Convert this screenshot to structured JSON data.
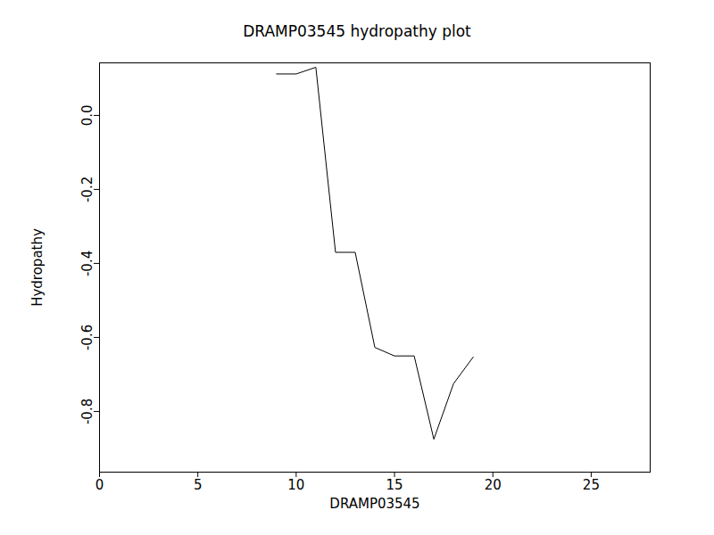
{
  "chart_data": {
    "type": "line",
    "title": "DRAMP03545 hydropathy plot",
    "x_label": "DRAMP03545",
    "y_label": "Hydropathy",
    "x": [
      9,
      10,
      11,
      12,
      13,
      14,
      15,
      16,
      17,
      18,
      19
    ],
    "values": [
      0.112,
      0.112,
      0.13,
      -0.37,
      -0.37,
      -0.627,
      -0.65,
      -0.65,
      -0.875,
      -0.725,
      -0.653
    ],
    "color": "#000000",
    "xlim": [
      0,
      28
    ],
    "xticks": [
      0,
      5,
      10,
      15,
      20,
      25
    ],
    "ylim": [
      -0.964,
      0.142
    ],
    "yticks": [
      {
        "value": 0,
        "label": "0.0"
      },
      -0.2,
      -0.4,
      -0.6,
      -0.8
    ],
    "grid": false
  }
}
